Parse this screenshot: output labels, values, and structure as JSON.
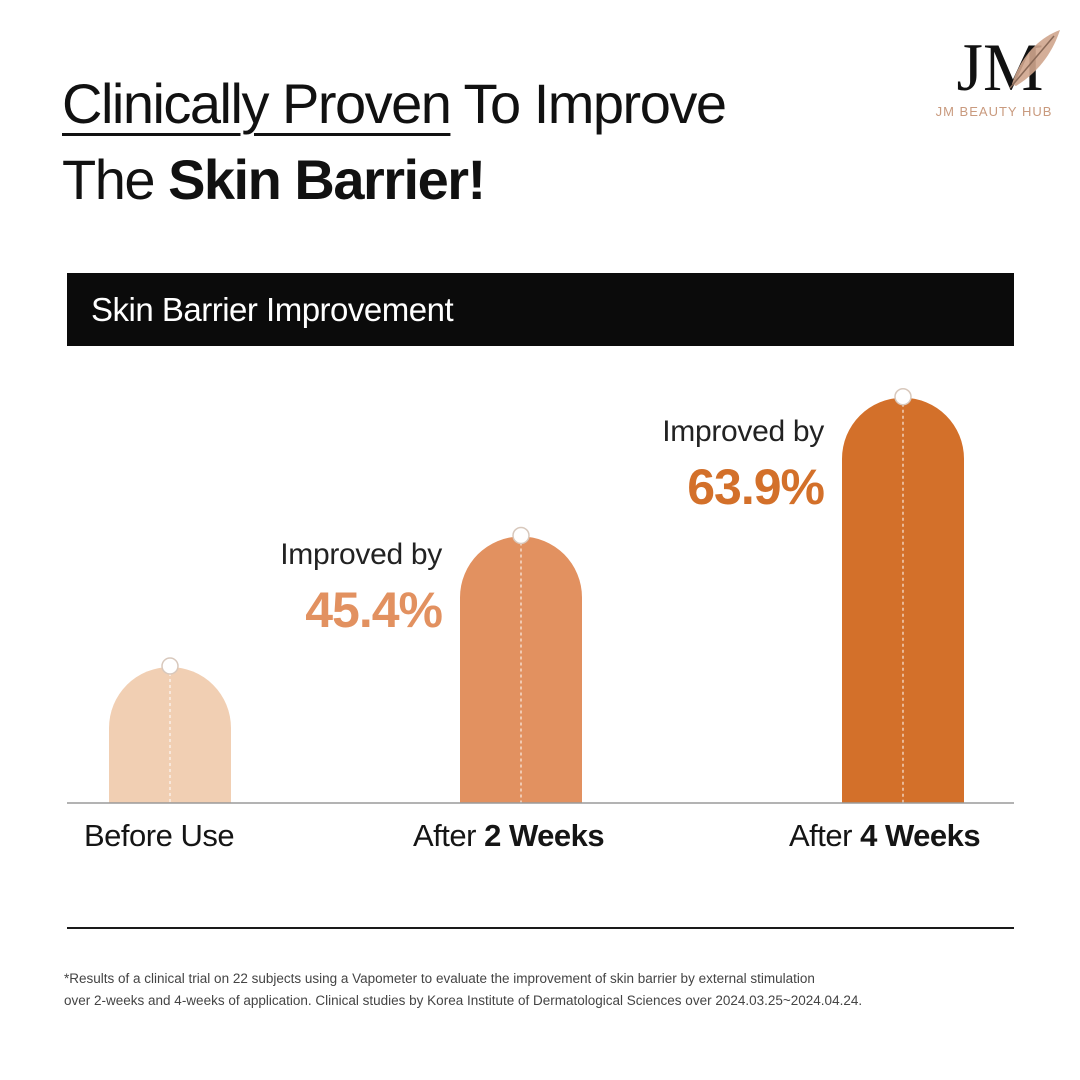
{
  "headline": {
    "part_underlined": "Clinically Proven",
    "part_1_rest": " To Improve",
    "part_2_plain": "The ",
    "part_2_bold": "Skin Barrier!"
  },
  "brand": {
    "monogram": "JM",
    "name": "JM BEAUTY HUB",
    "accent_color": "#c99a7e"
  },
  "chart_data": {
    "type": "bar",
    "title": "Skin Barrier Improvement",
    "categories": [
      "Before Use",
      "After 2 Weeks",
      "After 4 Weeks"
    ],
    "category_labels": [
      {
        "plain": "Before Use",
        "bold": ""
      },
      {
        "plain": "After ",
        "bold": "2 Weeks"
      },
      {
        "plain": "After ",
        "bold": "4 Weeks"
      }
    ],
    "relative_levels": [
      1.0,
      1.96,
      2.98
    ],
    "bar_colors": [
      "#f1cfb3",
      "#e29160",
      "#d3702a"
    ],
    "annotations": [
      null,
      {
        "text": "Improved by",
        "value": "45.4%",
        "color": "#e29160"
      },
      {
        "text": "Improved by",
        "value": "63.9%",
        "color": "#d3702a"
      }
    ],
    "grid": false,
    "legend": "none"
  },
  "footnote": {
    "line1": "*Results of a clinical trial on 22 subjects using a Vapometer to evaluate the improvement of skin barrier by external stimulation",
    "line2": "over 2-weeks and 4-weeks of application. Clinical studies by Korea Institute of Dermatological Sciences over 2024.03.25~2024.04.24."
  }
}
